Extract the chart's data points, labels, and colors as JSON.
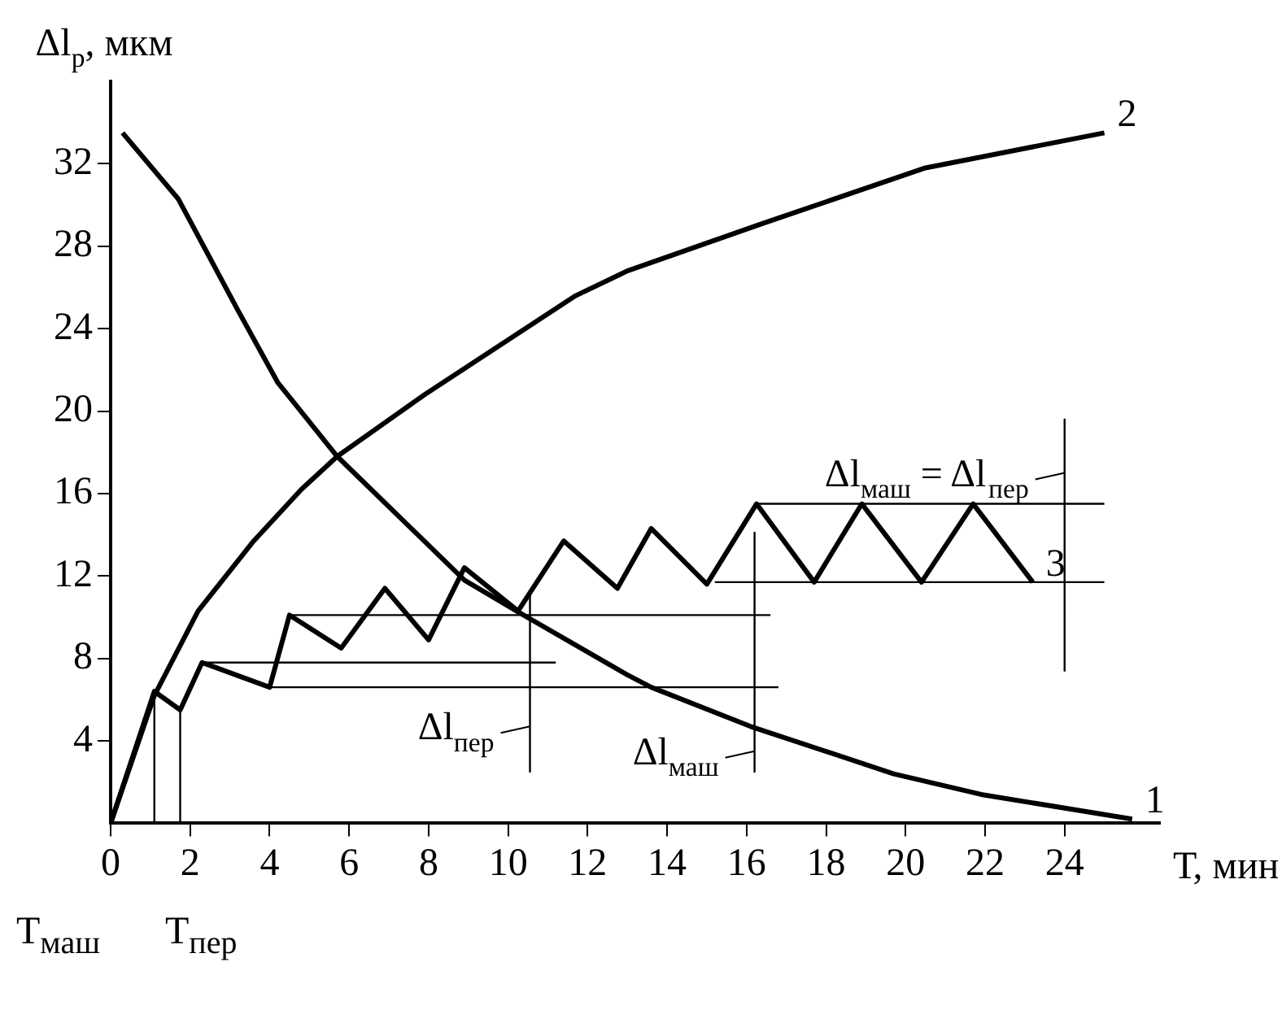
{
  "chart_data": {
    "type": "line",
    "ylabel": "Δl$_{р}$, мкм",
    "xlabel": "Т, мин",
    "xlim": [
      0,
      26.4
    ],
    "ylim": [
      0,
      36
    ],
    "xticks": [
      0,
      2,
      4,
      6,
      8,
      10,
      12,
      14,
      16,
      18,
      20,
      22,
      24
    ],
    "yticks": [
      4,
      8,
      12,
      16,
      20,
      24,
      28,
      32
    ],
    "series": [
      {
        "name": "1",
        "color": "#000000",
        "x": [
          0.3,
          1.7,
          3.2,
          4.2,
          5.7,
          8.9,
          10.3,
          13,
          13.6,
          16.1,
          19.7,
          21.9,
          25.7
        ],
        "values": [
          33.5,
          30.3,
          24.9,
          21.4,
          17.8,
          11.8,
          10.2,
          7.2,
          6.6,
          4.7,
          2.4,
          1.4,
          0.2
        ]
      },
      {
        "name": "2",
        "color": "#000000",
        "x": [
          0,
          1.1,
          2.2,
          3.6,
          4.8,
          5.7,
          7.9,
          11.7,
          13,
          16.4,
          20.5,
          25
        ],
        "values": [
          0,
          6.2,
          10.3,
          13.7,
          16.2,
          17.8,
          20.8,
          25.6,
          26.8,
          29.1,
          31.8,
          33.5
        ]
      },
      {
        "name": "3",
        "color": "#000000",
        "x": [
          0,
          1.1,
          1.75,
          2.3,
          4,
          4.5,
          5.8,
          6.9,
          8,
          8.9,
          10.25,
          11.4,
          12.75,
          13.6,
          15,
          16.25,
          17.7,
          18.9,
          20.4,
          21.7,
          23.2
        ],
        "values": [
          0,
          6.4,
          5.5,
          7.8,
          6.6,
          10.1,
          8.5,
          11.4,
          8.9,
          12.4,
          10.3,
          13.7,
          11.4,
          14.3,
          11.6,
          15.5,
          11.7,
          15.5,
          11.7,
          15.5,
          11.7
        ]
      },
      {
        "color": "#000000",
        "x": [
          2.3,
          11.2
        ],
        "values": [
          7.8,
          7.8
        ]
      },
      {
        "color": "#000000",
        "x": [
          4,
          16.8
        ],
        "values": [
          6.6,
          6.6
        ]
      },
      {
        "color": "#000000",
        "x": [
          4.5,
          16.6
        ],
        "values": [
          10.1,
          10.1
        ]
      },
      {
        "color": "#000000",
        "x": [
          16.25,
          25
        ],
        "values": [
          15.5,
          15.5
        ]
      },
      {
        "color": "#000000",
        "x": [
          15.2,
          25
        ],
        "values": [
          11.7,
          11.7
        ]
      },
      {
        "color": "#000000",
        "x": [
          10.55,
          10.55
        ],
        "values": [
          11.1,
          2.5
        ]
      },
      {
        "color": "#000000",
        "x": [
          16.2,
          16.2
        ],
        "values": [
          14.1,
          2.5
        ]
      },
      {
        "color": "#000000",
        "x": [
          24,
          24
        ],
        "values": [
          19.6,
          7.4
        ]
      },
      {
        "color": "#000000",
        "x": [
          1.1,
          1.1
        ],
        "values": [
          6.4,
          0
        ]
      },
      {
        "color": "#000000",
        "x": [
          1.75,
          1.75
        ],
        "values": [
          5.5,
          0
        ]
      }
    ],
    "annotations": [
      {
        "text": "Δl$_{маш}$ = Δl$_{пер}$",
        "x": 24,
        "y": 17
      },
      {
        "text": "Δl$_{пер}$",
        "x": 10.55,
        "y": 4.7
      },
      {
        "text": "Δl$_{маш}$",
        "x": 16.2,
        "y": 3.5
      },
      "Т$_{маш}$",
      "Т$_{пер}$"
    ]
  }
}
